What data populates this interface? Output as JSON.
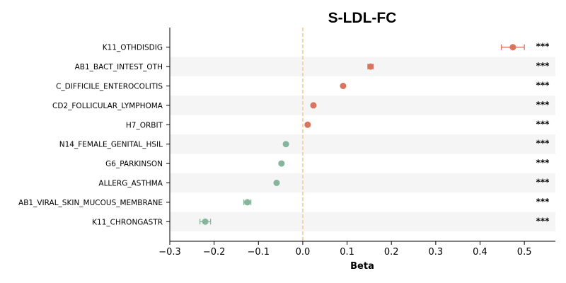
{
  "chart_data": {
    "type": "scatter",
    "title": "S-LDL-FC",
    "xlabel": "Beta",
    "ylabel": "",
    "xlim": [
      -0.3,
      0.57
    ],
    "xticks": [
      -0.3,
      -0.2,
      -0.1,
      0.0,
      0.1,
      0.2,
      0.3,
      0.4,
      0.5
    ],
    "xtick_labels": [
      "−0.3",
      "−0.2",
      "−0.1",
      "0.0",
      "0.1",
      "0.2",
      "0.3",
      "0.4",
      "0.5"
    ],
    "reference_line": 0,
    "grid": false,
    "row_shading": "alternate",
    "colors": {
      "positive": "#d9745e",
      "negative": "#86b59c",
      "reference": "#f2c98f",
      "shade": "#f5f5f5"
    },
    "categories": [
      "K11_OTHDISDIG",
      "AB1_BACT_INTEST_OTH",
      "C_DIFFICILE_ENTEROCOLITIS",
      "CD2_FOLLICULAR_LYMPHOMA",
      "H7_ORBIT",
      "N14_FEMALE_GENITAL_HSIL",
      "G6_PARKINSON",
      "ALLERG_ASTHMA",
      "AB1_VIRAL_SKIN_MUCOUS_MEMBRANE",
      "K11_CHRONGASTR"
    ],
    "values": [
      0.474,
      0.153,
      0.091,
      0.024,
      0.011,
      -0.038,
      -0.048,
      -0.059,
      -0.125,
      -0.22
    ],
    "ci_low": [
      0.448,
      0.147,
      0.089,
      0.022,
      0.009,
      -0.04,
      -0.05,
      -0.061,
      -0.133,
      -0.232
    ],
    "ci_high": [
      0.5,
      0.159,
      0.093,
      0.026,
      0.013,
      -0.036,
      -0.046,
      -0.057,
      -0.117,
      -0.208
    ],
    "significance": [
      "***",
      "***",
      "***",
      "***",
      "***",
      "***",
      "***",
      "***",
      "***",
      "***"
    ]
  }
}
